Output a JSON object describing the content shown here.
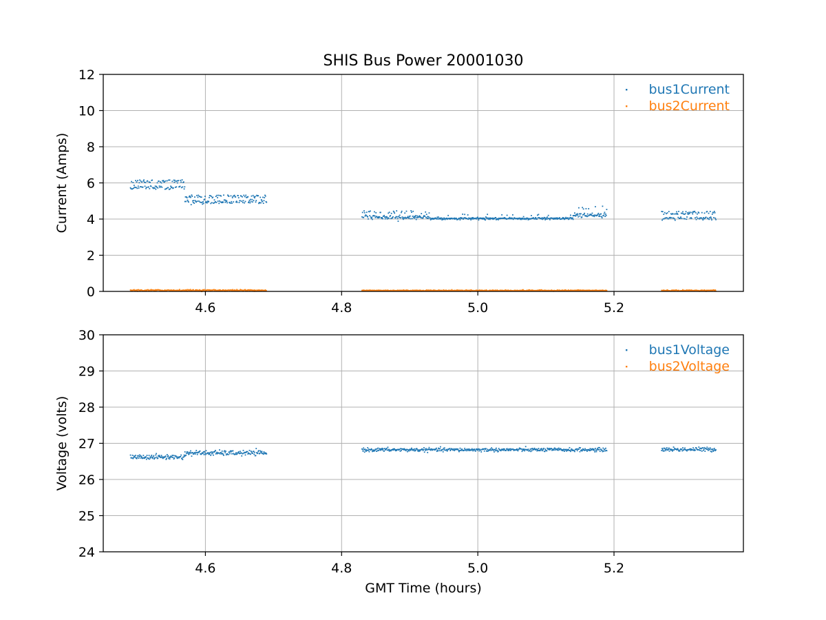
{
  "chart_data": [
    {
      "type": "scatter",
      "title": "SHIS Bus Power 20001030",
      "xlabel": "",
      "ylabel": "Current (Amps)",
      "xlim": [
        4.45,
        5.39
      ],
      "ylim": [
        0,
        12
      ],
      "xticks": [
        "4.6",
        "4.8",
        "5.0",
        "5.2"
      ],
      "xtick_values": [
        4.6,
        4.8,
        5.0,
        5.2
      ],
      "yticks": [
        "0",
        "2",
        "4",
        "6",
        "8",
        "10",
        "12"
      ],
      "ytick_values": [
        0,
        2,
        4,
        6,
        8,
        10,
        12
      ],
      "grid": true,
      "legend_position": "top-right",
      "series": [
        {
          "name": "bus1Current",
          "color": "#1f77b4",
          "segments": [
            {
              "x0": 4.49,
              "x1": 4.57,
              "base": 5.75,
              "spread": 0.12,
              "spike": 0.35,
              "spike_rate": 0.45
            },
            {
              "x0": 4.57,
              "x1": 4.69,
              "base": 4.95,
              "spread": 0.12,
              "spike": 0.32,
              "spike_rate": 0.45
            },
            {
              "x0": 4.83,
              "x1": 4.93,
              "base": 4.1,
              "spread": 0.12,
              "spike": 0.3,
              "spike_rate": 0.2
            },
            {
              "x0": 4.93,
              "x1": 5.14,
              "base": 4.03,
              "spread": 0.06,
              "spike": 0.2,
              "spike_rate": 0.03
            },
            {
              "x0": 5.14,
              "x1": 5.19,
              "base": 4.2,
              "spread": 0.15,
              "spike": 0.45,
              "spike_rate": 0.2
            },
            {
              "x0": 5.27,
              "x1": 5.35,
              "base": 4.03,
              "spread": 0.08,
              "spike": 0.33,
              "spike_rate": 0.45
            }
          ]
        },
        {
          "name": "bus2Current",
          "color": "#ff7f0e",
          "segments": [
            {
              "x0": 4.49,
              "x1": 4.69,
              "base": 0.06,
              "spread": 0.04,
              "spike": 0.0,
              "spike_rate": 0.0
            },
            {
              "x0": 4.83,
              "x1": 5.19,
              "base": 0.05,
              "spread": 0.03,
              "spike": 0.0,
              "spike_rate": 0.0
            },
            {
              "x0": 5.27,
              "x1": 5.35,
              "base": 0.05,
              "spread": 0.03,
              "spike": 0.0,
              "spike_rate": 0.0
            }
          ]
        }
      ]
    },
    {
      "type": "scatter",
      "title": "",
      "xlabel": "GMT Time (hours)",
      "ylabel": "Voltage (volts)",
      "xlim": [
        4.45,
        5.39
      ],
      "ylim": [
        24,
        30
      ],
      "xticks": [
        "4.6",
        "4.8",
        "5.0",
        "5.2"
      ],
      "xtick_values": [
        4.6,
        4.8,
        5.0,
        5.2
      ],
      "yticks": [
        "24",
        "25",
        "26",
        "27",
        "28",
        "29",
        "30"
      ],
      "ytick_values": [
        24,
        25,
        26,
        27,
        28,
        29,
        30
      ],
      "grid": true,
      "legend_position": "top-right",
      "series": [
        {
          "name": "bus1Voltage",
          "color": "#1f77b4",
          "segments": [
            {
              "x0": 4.49,
              "x1": 4.57,
              "base": 26.62,
              "spread": 0.07,
              "spike": 0.0,
              "spike_rate": 0.0
            },
            {
              "x0": 4.57,
              "x1": 4.69,
              "base": 26.73,
              "spread": 0.07,
              "spike": 0.0,
              "spike_rate": 0.0
            },
            {
              "x0": 4.83,
              "x1": 5.19,
              "base": 26.82,
              "spread": 0.05,
              "spike": 0.0,
              "spike_rate": 0.0
            },
            {
              "x0": 5.27,
              "x1": 5.35,
              "base": 26.83,
              "spread": 0.06,
              "spike": 0.0,
              "spike_rate": 0.0
            }
          ]
        },
        {
          "name": "bus2Voltage",
          "color": "#ff7f0e",
          "segments": []
        }
      ]
    }
  ]
}
